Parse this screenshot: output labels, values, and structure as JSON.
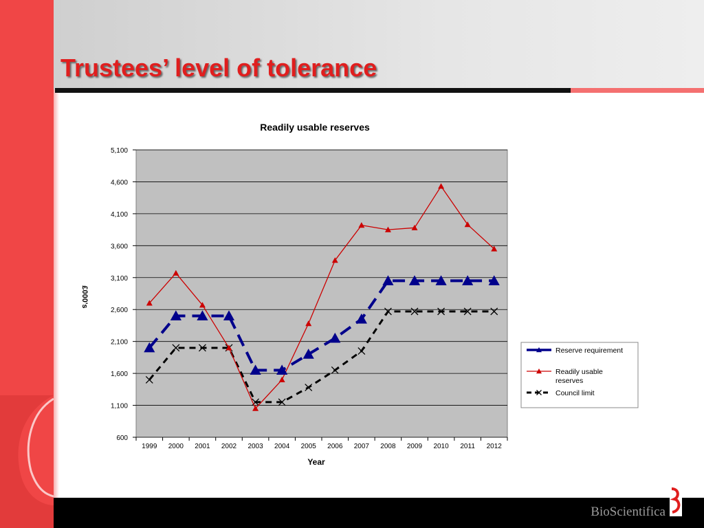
{
  "slide": {
    "title": "Trustees’ level of tolerance",
    "brand": "BioScientifica"
  },
  "colors": {
    "accent_red": "#f04646",
    "title_red": "#e01e1e",
    "plot_bg": "#c0c0c0",
    "reserve_requirement": "#00008b",
    "readily_usable": "#cc0000",
    "council_limit": "#000000"
  },
  "chart_data": {
    "type": "line",
    "title": "Readily usable reserves",
    "xlabel": "Year",
    "ylabel": "£000's",
    "ylim": [
      600,
      5100
    ],
    "yticks": [
      "600",
      "1,100",
      "1,600",
      "2,100",
      "2,600",
      "3,100",
      "3,600",
      "4,100",
      "4,600",
      "5,100"
    ],
    "categories": [
      "1999",
      "2000",
      "2001",
      "2002",
      "2003",
      "2004",
      "2005",
      "2006",
      "2007",
      "2008",
      "2009",
      "2010",
      "2011",
      "2012"
    ],
    "grid": true,
    "legend_position": "right",
    "series": [
      {
        "name": "Reserve requirement",
        "marker": "triangle",
        "dash": "long",
        "color": "#00008b",
        "values": [
          2000,
          2500,
          2500,
          2500,
          1650,
          1650,
          1900,
          2150,
          2450,
          3050,
          3050,
          3050,
          3050,
          3050
        ]
      },
      {
        "name": "Readily usable reserves",
        "legend_lines": [
          "Readily usable",
          "reserves"
        ],
        "marker": "triangle",
        "dash": "solid",
        "color": "#cc0000",
        "values": [
          2700,
          3170,
          2670,
          2000,
          1050,
          1500,
          2380,
          3370,
          3920,
          3850,
          3880,
          4530,
          3930,
          3550
        ]
      },
      {
        "name": "Council limit",
        "marker": "x",
        "dash": "short",
        "color": "#000000",
        "values": [
          1500,
          2000,
          2000,
          2000,
          1150,
          1150,
          1380,
          1650,
          1950,
          2570,
          2570,
          2570,
          2570,
          2570
        ]
      }
    ]
  }
}
